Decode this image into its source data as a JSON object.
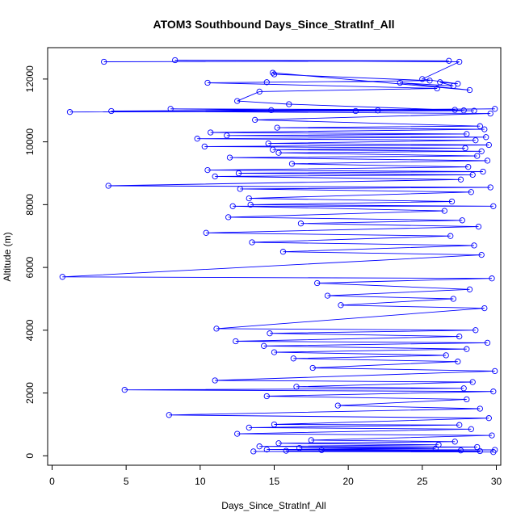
{
  "chart_data": {
    "type": "scatter",
    "title": "ATOM3 Southbound Days_Since_StratInf_All",
    "xlabel": "Days_Since_StratInf_All",
    "ylabel": "Altitude (m)",
    "xlim": [
      -0.3,
      30.3
    ],
    "ylim": [
      -300,
      13000
    ],
    "x_ticks": [
      0,
      5,
      10,
      15,
      20,
      25,
      30
    ],
    "y_ticks": [
      0,
      2000,
      4000,
      6000,
      8000,
      10000,
      12000
    ],
    "grid": false,
    "legend": "none",
    "marker": "open-circle",
    "connected": true,
    "color": "#0000ff",
    "series": [
      {
        "name": "",
        "x": [
          3.5,
          26.8,
          8.3,
          27.5,
          25.0,
          27.4,
          26.2,
          27.1,
          23.5,
          28.2,
          14.9,
          15.0,
          25.5,
          14.5,
          10.5,
          26.0,
          14.0,
          12.5,
          16.0,
          27.8,
          20.5,
          27.2,
          8.0,
          14.8,
          22.0,
          28.5,
          1.2,
          29.9,
          4.0,
          29.6,
          13.7,
          28.9,
          15.2,
          29.2,
          10.7,
          28.0,
          11.8,
          29.3,
          9.8,
          28.6,
          14.6,
          29.5,
          10.3,
          27.9,
          14.9,
          29.0,
          15.3,
          28.7,
          12.0,
          29.4,
          16.2,
          28.1,
          10.5,
          29.1,
          12.6,
          28.4,
          11.0,
          27.6,
          3.8,
          29.6,
          12.7,
          28.3,
          13.3,
          27.0,
          13.4,
          29.8,
          12.2,
          26.5,
          11.9,
          27.7,
          16.8,
          28.8,
          10.4,
          26.9,
          13.5,
          28.5,
          15.6,
          29.0,
          0.7,
          29.7,
          17.9,
          28.2,
          18.6,
          27.1,
          19.5,
          29.2,
          11.1,
          28.6,
          14.7,
          27.5,
          12.4,
          29.4,
          14.3,
          28.0,
          15.0,
          26.6,
          16.3,
          27.4,
          17.6,
          29.9,
          11.0,
          28.4,
          16.5,
          27.8,
          4.9,
          29.8,
          14.5,
          28.0,
          19.3,
          28.9,
          7.9,
          29.5,
          15.0,
          27.5,
          13.3,
          28.3,
          12.5,
          29.7,
          17.5,
          27.2,
          15.3,
          26.1,
          14.0,
          28.7,
          16.7,
          25.9,
          14.5,
          29.9,
          18.2,
          27.6,
          15.8,
          28.9,
          13.6,
          29.8
        ],
        "y": [
          12550,
          12580,
          12600,
          12550,
          12000,
          11850,
          11900,
          11780,
          11880,
          11650,
          12200,
          12150,
          11950,
          11900,
          11880,
          11700,
          11600,
          11300,
          11200,
          11000,
          10980,
          11020,
          11050,
          11010,
          11000,
          10990,
          10950,
          11050,
          10980,
          10900,
          10700,
          10500,
          10450,
          10400,
          10300,
          10250,
          10200,
          10150,
          10100,
          10050,
          9950,
          9900,
          9850,
          9800,
          9750,
          9700,
          9650,
          9550,
          9500,
          9400,
          9300,
          9200,
          9100,
          9050,
          9000,
          8950,
          8900,
          8800,
          8600,
          8550,
          8500,
          8400,
          8200,
          8100,
          8000,
          7950,
          7950,
          7800,
          7600,
          7500,
          7400,
          7300,
          7100,
          7000,
          6800,
          6700,
          6500,
          6400,
          5700,
          5650,
          5500,
          5300,
          5100,
          5000,
          4800,
          4700,
          4050,
          4000,
          3900,
          3800,
          3650,
          3600,
          3500,
          3400,
          3300,
          3200,
          3100,
          3000,
          2800,
          2700,
          2400,
          2350,
          2200,
          2150,
          2100,
          2050,
          1900,
          1800,
          1600,
          1500,
          1300,
          1200,
          1000,
          980,
          900,
          850,
          700,
          650,
          500,
          450,
          400,
          350,
          300,
          280,
          250,
          230,
          200,
          190,
          180,
          170,
          160,
          150,
          140,
          120
        ]
      }
    ]
  }
}
